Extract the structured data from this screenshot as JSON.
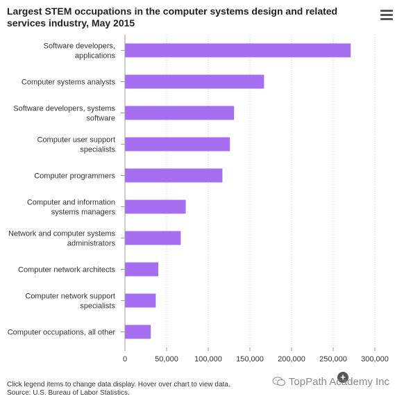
{
  "header": {
    "title": "Largest STEM occupations in the computer systems design and related services industry, May 2015",
    "menu_icon": "hamburger-menu-icon"
  },
  "footer": {
    "line1": "Click legend items to change data display. Hover over chart to view data.",
    "line2": "Source: U.S. Bureau of Labor Statistics."
  },
  "watermark": {
    "text": "TopPath Academy Inc",
    "icon": "wechat-icon"
  },
  "colors": {
    "bar": "#a66ef0",
    "grid": "#cfcfcf",
    "axis": "#9a9a9a"
  },
  "chart_data": {
    "type": "bar",
    "orientation": "horizontal",
    "title": "Largest STEM occupations in the computer systems design and related services industry, May 2015",
    "xlabel": "",
    "ylabel": "",
    "xlim": [
      0,
      300000
    ],
    "x_ticks": [
      0,
      50000,
      100000,
      150000,
      200000,
      250000,
      300000
    ],
    "x_tick_labels": [
      "0",
      "50,000",
      "100,000",
      "150,000",
      "200,000",
      "250,000",
      "300,000"
    ],
    "grid": "vertical dotted",
    "categories": [
      [
        "Software developers,",
        "applications"
      ],
      [
        "Computer systems analysts"
      ],
      [
        "Software developers, systems",
        "software"
      ],
      [
        "Computer user support",
        "specialists"
      ],
      [
        "Computer programmers"
      ],
      [
        "Computer and information",
        "systems managers"
      ],
      [
        "Network and computer systems",
        "administrators"
      ],
      [
        "Computer network architects"
      ],
      [
        "Computer network support",
        "specialists"
      ],
      [
        "Computer occupations, all other"
      ]
    ],
    "values": [
      271000,
      167000,
      131000,
      126000,
      117000,
      73000,
      67000,
      40000,
      37000,
      31000
    ]
  }
}
